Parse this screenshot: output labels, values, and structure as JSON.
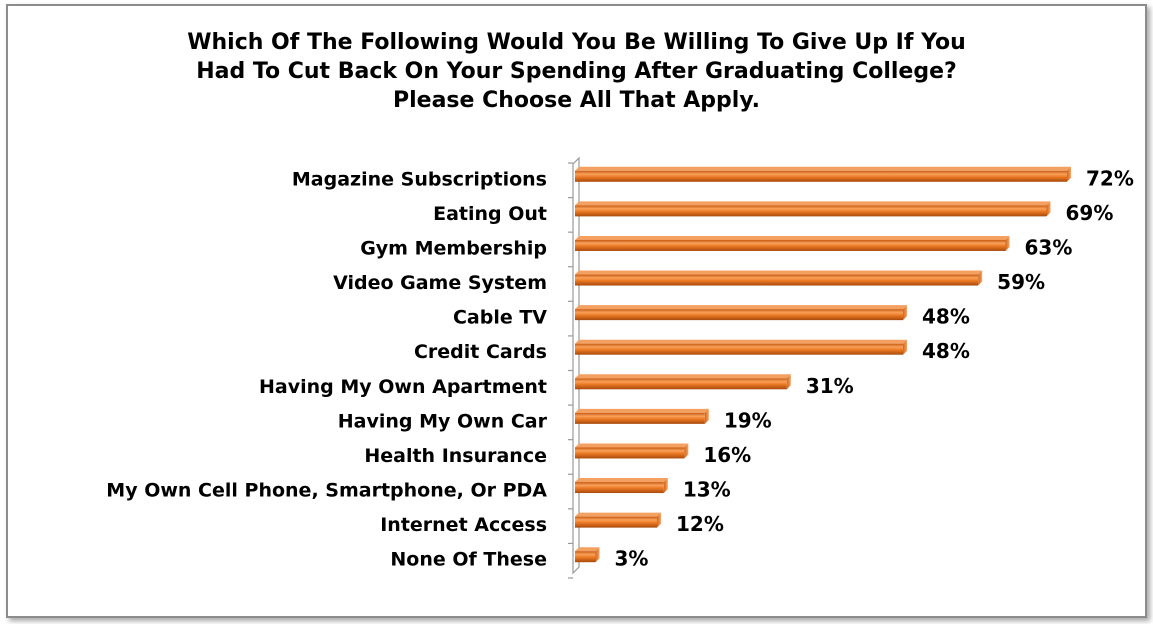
{
  "chart_data": {
    "type": "bar",
    "orientation": "horizontal",
    "title": "Which Of The Following Would You Be Willing To Give Up If You Had To Cut Back On Your Spending After Graduating College? Please Choose All That Apply.",
    "title_lines": [
      "Which Of The Following Would You Be Willing To Give Up If You",
      "Had To Cut Back On Your Spending After Graduating College?",
      "Please Choose All That Apply."
    ],
    "categories": [
      "Magazine Subscriptions",
      "Eating Out",
      "Gym Membership",
      "Video Game System",
      "Cable TV",
      "Credit Cards",
      "Having My Own Apartment",
      "Having My Own Car",
      "Health Insurance",
      "My Own Cell Phone, Smartphone, Or PDA",
      "Internet Access",
      "None Of These"
    ],
    "values": [
      72,
      69,
      63,
      59,
      48,
      48,
      31,
      19,
      16,
      13,
      12,
      3
    ],
    "value_labels": [
      "72%",
      "69%",
      "63%",
      "59%",
      "48%",
      "48%",
      "31%",
      "19%",
      "16%",
      "13%",
      "12%",
      "3%"
    ],
    "unit": "%",
    "xlim": [
      0,
      72
    ],
    "bar_color": "#E8731E",
    "bar_highlight": "#F7B27A",
    "bar_shadow": "#B4520F",
    "grid": false,
    "legend": "none"
  }
}
